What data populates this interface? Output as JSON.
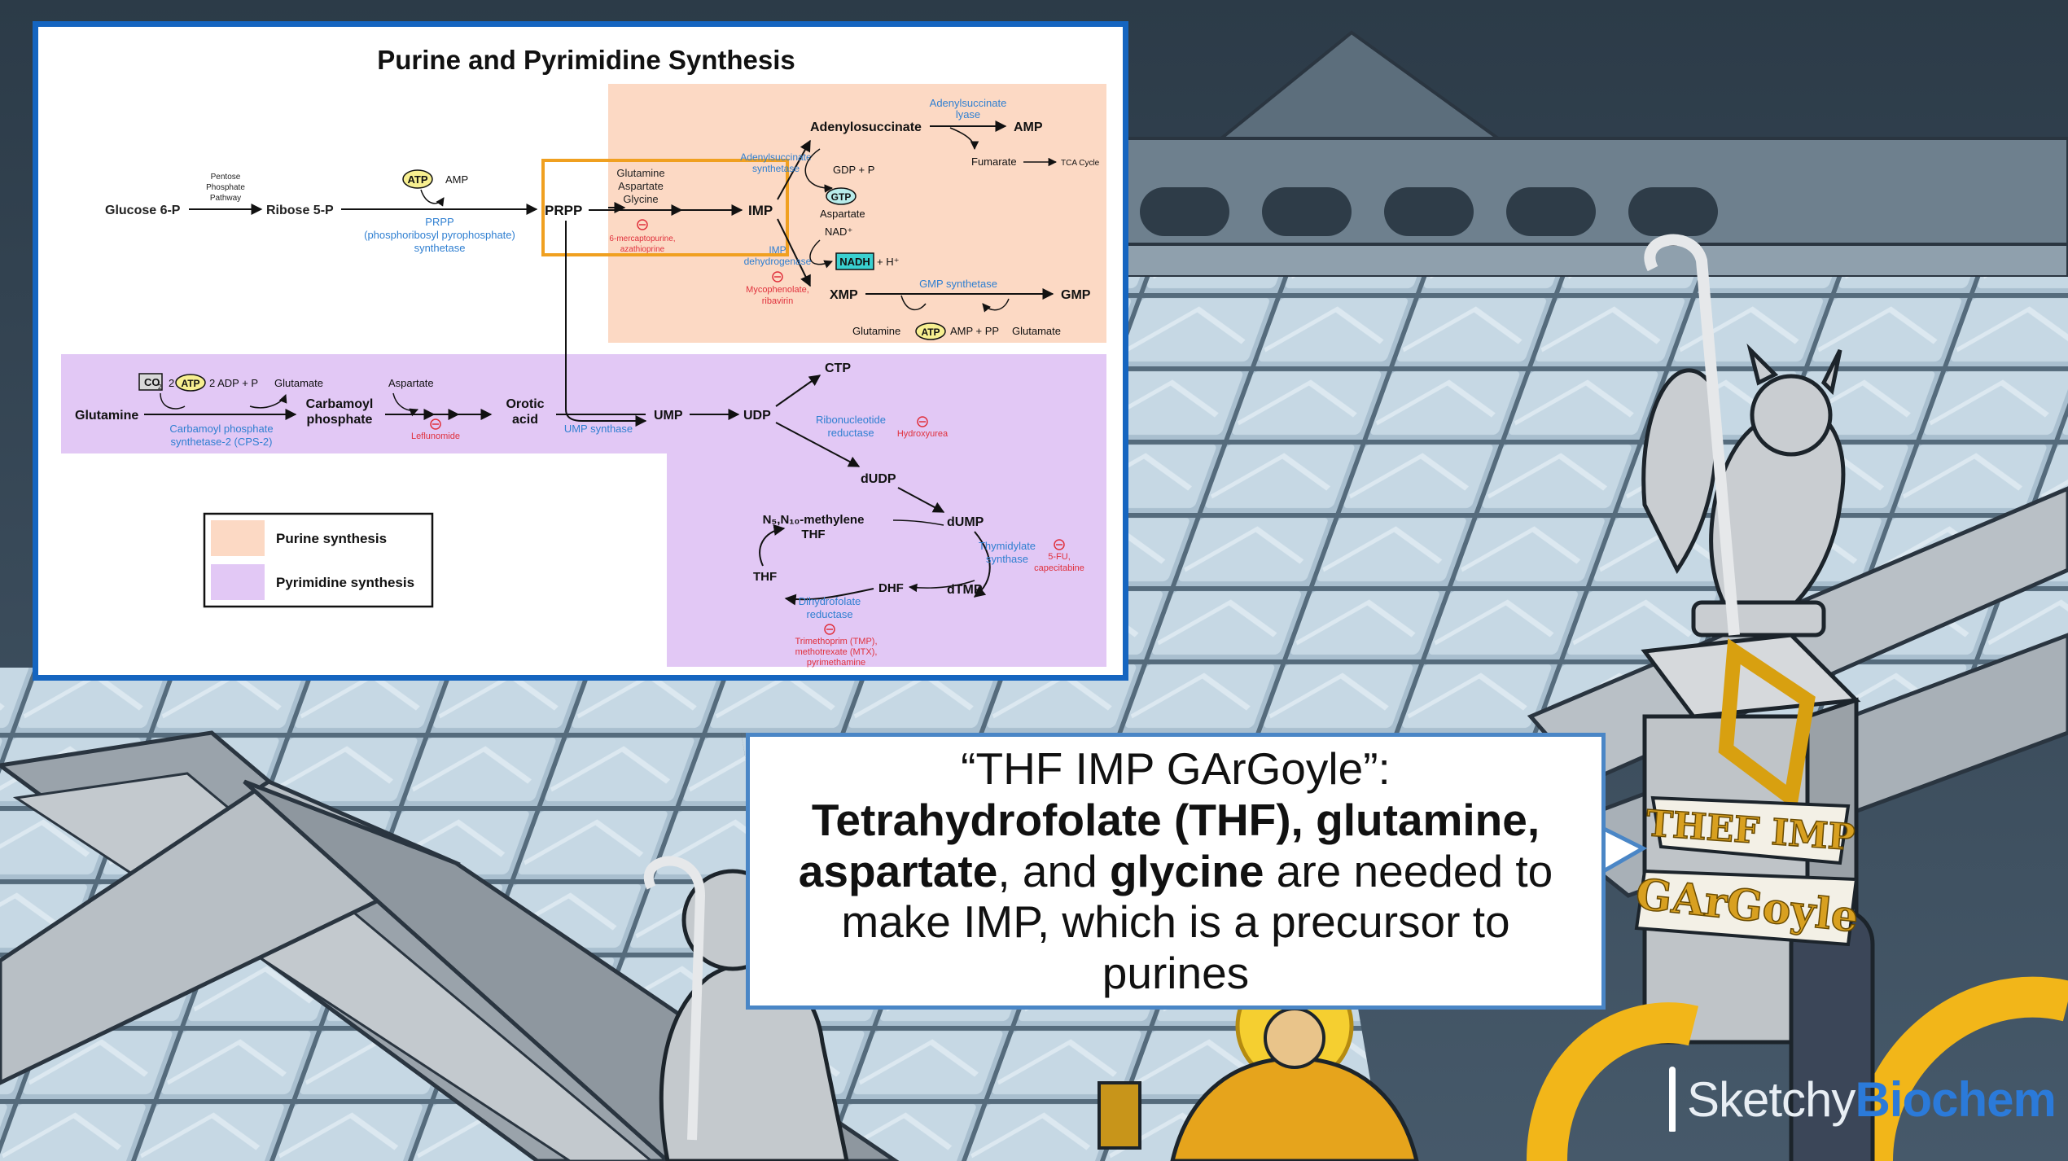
{
  "diagram": {
    "title": "Purine and Pyrimidine Synthesis",
    "nodes": {
      "glucose6p": "Glucose 6-P",
      "ppp1": "Pentose",
      "ppp2": "Phosphate",
      "ppp3": "Pathway",
      "ribose5p": "Ribose 5-P",
      "atp": "ATP",
      "amp": "AMP",
      "prpp_enzyme1": "PRPP",
      "prpp_enzyme2": "(phosphoribosyl pyrophosphate)",
      "prpp_enzyme3": "synthetase",
      "prpp": "PRPP",
      "glutamine": "Glutamine",
      "aspartate": "Aspartate",
      "glycine": "Glycine",
      "mp_drug1": "6-mercaptopurine,",
      "mp_drug2": "azathioprine",
      "imp": "IMP",
      "adenylosuccinate": "Adenylosuccinate",
      "adsl1": "Adenylsuccinate",
      "adsl2": "lyase",
      "amp_product": "AMP",
      "fumarate": "Fumarate",
      "tca": "TCA Cycle",
      "adss1": "Adenylsuccinate",
      "adss2": "synthetase",
      "gdp_pi": "GDP + P",
      "pi_sub": "i",
      "gtp": "GTP",
      "aspartate2": "Aspartate",
      "nad": "NAD⁺",
      "nadh": "NADH",
      "h_plus": "+ H⁺",
      "impdh1": "IMP",
      "impdh2": "dehydrogenase",
      "myco1": "Mycophenolate,",
      "myco2": "ribavirin",
      "xmp": "XMP",
      "gmps": "GMP synthetase",
      "gmp": "GMP",
      "glutamine2": "Glutamine",
      "atp2": "ATP",
      "amp_ppi": "AMP + PP",
      "glutamate": "Glutamate",
      "glutamine3": "Glutamine",
      "co2": "CO",
      "co2_sub": "2",
      "two": "2",
      "atp3": "ATP",
      "adp_pi": "2 ADP + P",
      "glutamate2": "Glutamate",
      "cps1": "Carbamoyl phosphate",
      "cps2": "synthetase-2 (CPS-2)",
      "carbamoyl1": "Carbamoyl",
      "carbamoyl2": "phosphate",
      "aspartate3": "Aspartate",
      "leflunomide": "Leflunomide",
      "orotic1": "Orotic",
      "orotic2": "acid",
      "ump_synthase": "UMP synthase",
      "ump": "UMP",
      "udp": "UDP",
      "ctp": "CTP",
      "rnr1": "Ribonucleotide",
      "rnr2": "reductase",
      "hydroxyurea": "Hydroxyurea",
      "dudp": "dUDP",
      "dump": "dUMP",
      "methylene1": "N₅,N₁₀-methylene",
      "methylene2": "THF",
      "ts1": "Thymidylate",
      "ts2": "synthase",
      "fu1": "5-FU,",
      "fu2": "capecitabine",
      "thf": "THF",
      "dhf": "DHF",
      "dtmp": "dTMP",
      "dhfr1": "Dihydrofolate",
      "dhfr2": "reductase",
      "tmp1": "Trimethoprim (TMP),",
      "tmp2": "methotrexate (MTX),",
      "tmp3": "pyrimethamine"
    },
    "legend": {
      "purine": "Purine synthesis",
      "pyrimidine": "Pyrimidine synthesis"
    },
    "colors": {
      "purine_bg": "#fcd9c4",
      "pyrimidine_bg": "#e2c8f5",
      "enzyme": "#2f7fd1",
      "drug": "#e0303c",
      "highlight": "#f0a020"
    }
  },
  "caption": {
    "quote": "“THF IMP GArGoyle”: ",
    "b1": "Tetrahydrofolate (THF), glutamine, aspartate",
    "t1": ", and ",
    "b2": "glycine",
    "t2": " are needed to make IMP, which is a precursor to purines"
  },
  "banner": {
    "line1": "THEF IMP",
    "line2": "GArGoyle"
  },
  "logo": {
    "part1": "Sketchy",
    "part2": "Biochem"
  }
}
